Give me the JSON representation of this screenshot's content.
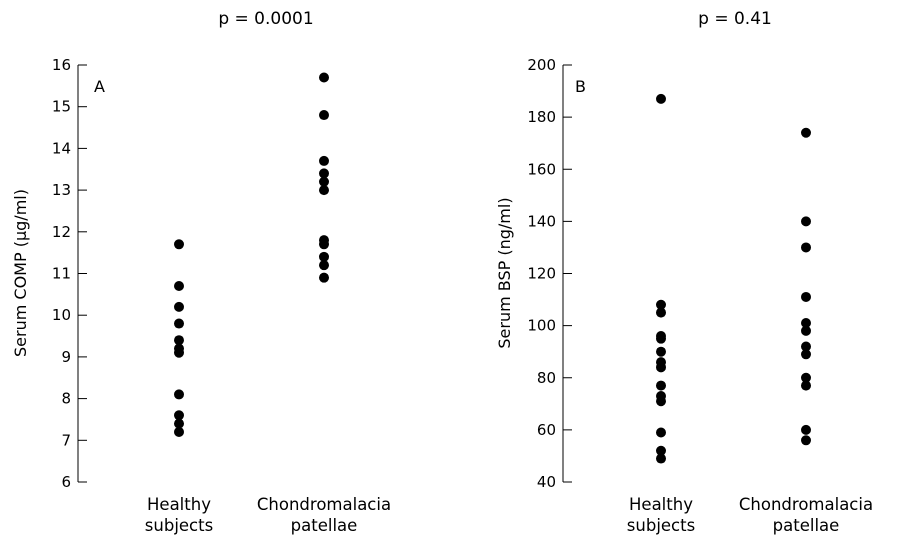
{
  "chart_data": [
    {
      "type": "scatter",
      "title": "p = 0.0001",
      "panel_label": "A",
      "ylabel": "Serum COMP (µg/ml)",
      "ylim": [
        6,
        16
      ],
      "yticks": [
        "6",
        "7",
        "8",
        "9",
        "10",
        "11",
        "12",
        "13",
        "14",
        "15",
        "16"
      ],
      "categories": [
        {
          "line1": "Healthy",
          "line2": "subjects"
        },
        {
          "line1": "Chondromalacia",
          "line2": "patellae"
        }
      ],
      "series": [
        {
          "category_index": 0,
          "values": [
            11.7,
            10.7,
            10.2,
            9.8,
            9.4,
            9.2,
            9.1,
            8.1,
            7.6,
            7.4,
            7.2
          ]
        },
        {
          "category_index": 1,
          "values": [
            15.7,
            14.8,
            13.7,
            13.4,
            13.2,
            13.0,
            11.8,
            11.7,
            11.4,
            11.2,
            10.9
          ]
        }
      ],
      "grid": false,
      "marker_color": "#000000"
    },
    {
      "type": "scatter",
      "title": "p = 0.41",
      "panel_label": "B",
      "ylabel": "Serum BSP (ng/ml)",
      "ylim": [
        40,
        200
      ],
      "yticks": [
        "40",
        "60",
        "80",
        "100",
        "120",
        "140",
        "160",
        "180",
        "200"
      ],
      "categories": [
        {
          "line1": "Healthy",
          "line2": "subjects"
        },
        {
          "line1": "Chondromalacia",
          "line2": "patellae"
        }
      ],
      "series": [
        {
          "category_index": 0,
          "values": [
            187,
            108,
            105,
            96,
            95,
            90,
            86,
            84,
            77,
            73,
            71,
            59,
            52,
            49
          ]
        },
        {
          "category_index": 1,
          "values": [
            174,
            140,
            130,
            111,
            101,
            98,
            92,
            89,
            80,
            77,
            60,
            56
          ]
        }
      ],
      "grid": false,
      "marker_color": "#000000"
    }
  ]
}
